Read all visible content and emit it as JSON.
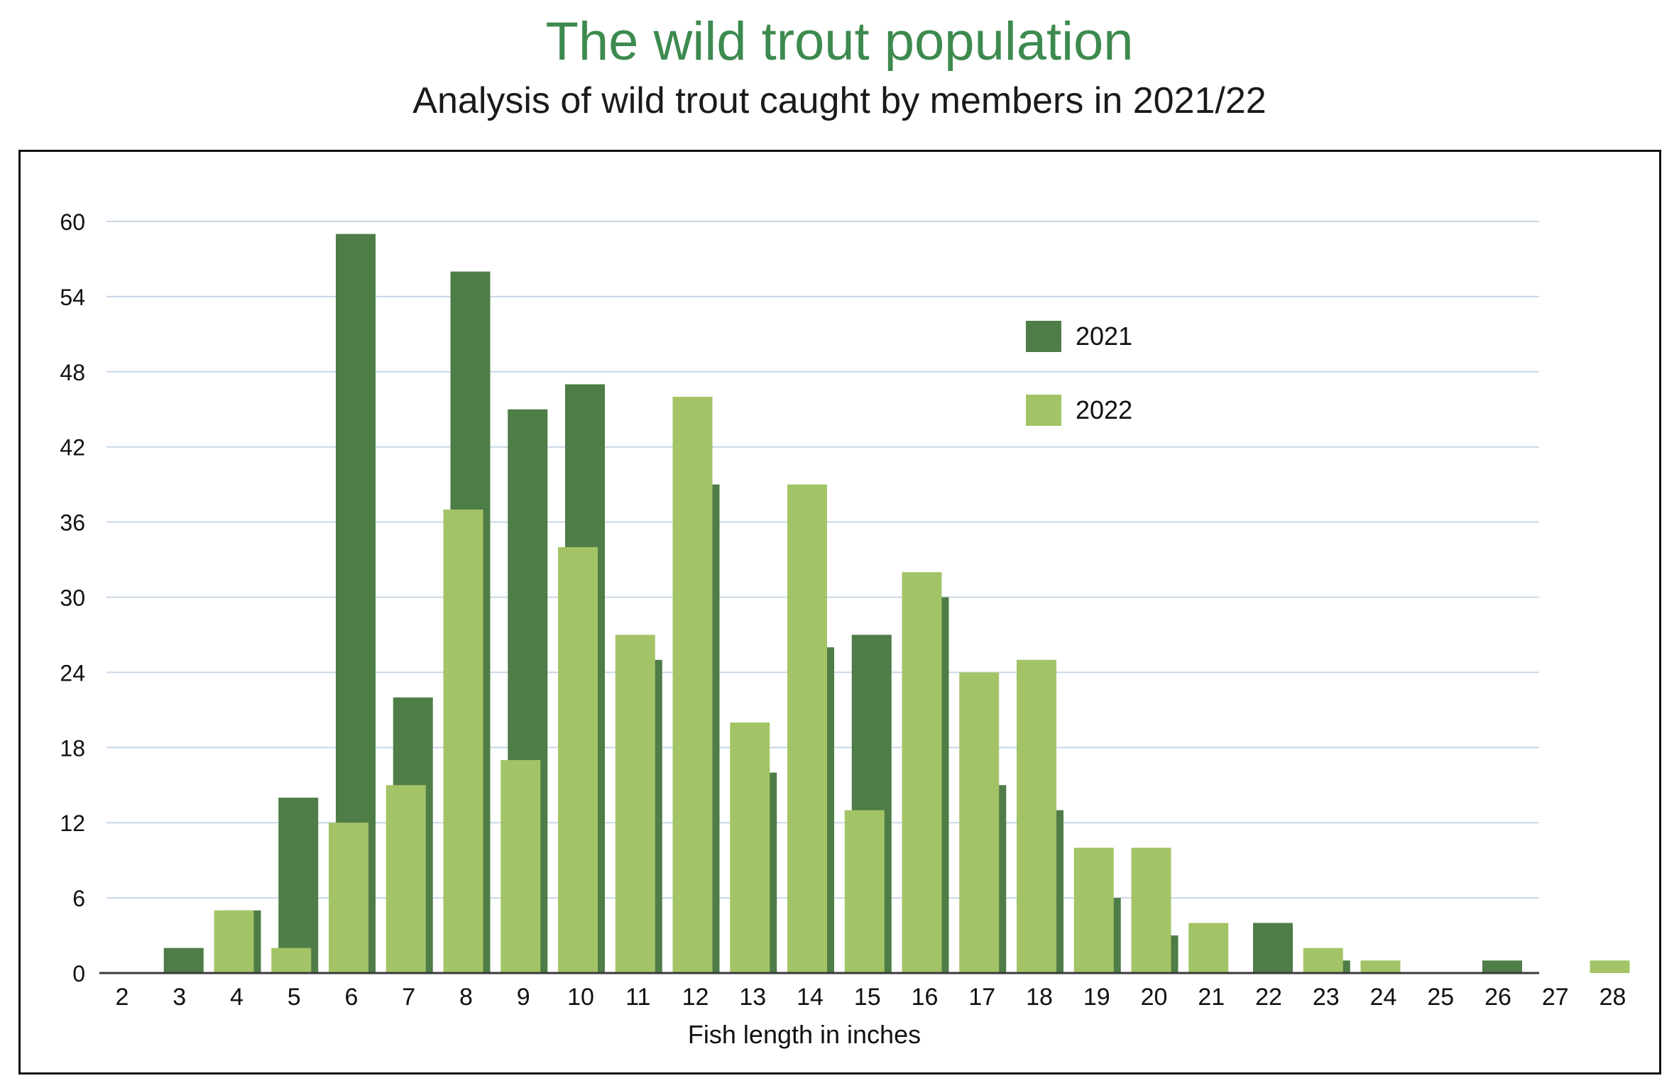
{
  "title": "The wild trout population",
  "subtitle": "Analysis of wild trout caught by members in 2021/22",
  "colors": {
    "title": "#3d8a4f",
    "series_2021": "#4e7d47",
    "series_2022": "#a3c466",
    "grid": "#c9d7e6"
  },
  "chart_data": {
    "type": "bar",
    "xlabel": "Fish length in inches",
    "ylabel": "",
    "ylim": [
      0,
      60
    ],
    "yticks": [
      0,
      6,
      12,
      18,
      24,
      30,
      36,
      42,
      48,
      54,
      60
    ],
    "grid": true,
    "legend_position": "top-right",
    "categories": [
      "2",
      "3",
      "4",
      "5",
      "6",
      "7",
      "8",
      "9",
      "10",
      "11",
      "12",
      "13",
      "14",
      "15",
      "16",
      "17",
      "18",
      "19",
      "20",
      "21",
      "22",
      "23",
      "24",
      "25",
      "26",
      "27",
      "28"
    ],
    "series": [
      {
        "name": "2021",
        "values": [
          0,
          2,
          5,
          14,
          59,
          22,
          56,
          45,
          47,
          25,
          39,
          16,
          26,
          27,
          30,
          15,
          13,
          6,
          3,
          0,
          4,
          1,
          0,
          0,
          1,
          0,
          0
        ]
      },
      {
        "name": "2022",
        "values": [
          0,
          0,
          5,
          2,
          12,
          15,
          37,
          17,
          34,
          27,
          46,
          20,
          39,
          13,
          32,
          24,
          25,
          10,
          10,
          4,
          0,
          2,
          1,
          0,
          0,
          0,
          1
        ]
      }
    ]
  }
}
